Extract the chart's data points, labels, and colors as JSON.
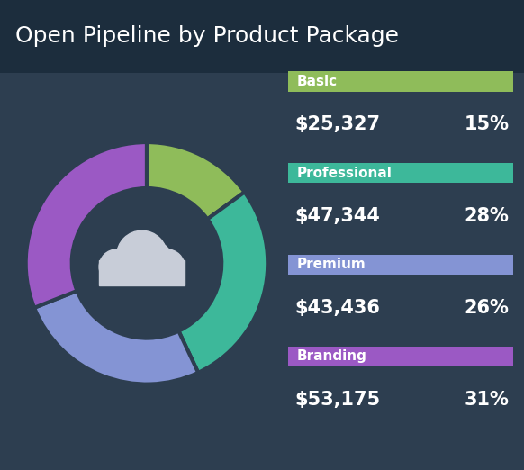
{
  "title": "Open Pipeline by Product Package",
  "title_fontsize": 18,
  "title_bar_color": "#1c2d3d",
  "background_color": "#2d3e50",
  "segments": [
    {
      "label": "Basic",
      "value": 25327,
      "pct": 15,
      "color": "#8fbc5a"
    },
    {
      "label": "Professional",
      "value": 47344,
      "pct": 28,
      "color": "#3db89a"
    },
    {
      "label": "Premium",
      "value": 43436,
      "pct": 26,
      "color": "#8494d4"
    },
    {
      "label": "Branding",
      "value": 53175,
      "pct": 31,
      "color": "#9b59c4"
    }
  ],
  "text_color": "#ffffff",
  "value_fontsize": 15,
  "pct_fontsize": 15,
  "legend_label_fontsize": 11,
  "cloud_color": "#c8cdd8",
  "donut_bg_color": "#2d3e50",
  "edge_color": "#2d3e50",
  "start_angle": 90
}
